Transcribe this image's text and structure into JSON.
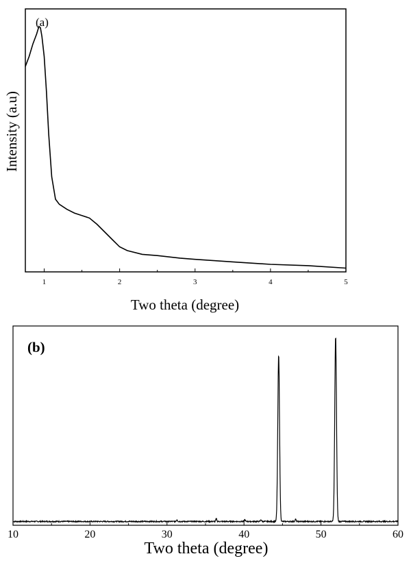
{
  "chart_data": [
    {
      "type": "line",
      "panel_label": "(a)",
      "xlabel": "Two theta (degree)",
      "ylabel": "Intensity (a.u)",
      "xlim": [
        0.75,
        5
      ],
      "ylim": [
        0,
        1.05
      ],
      "xticks": [
        1,
        2,
        3,
        4,
        5
      ],
      "yticks_shown": false,
      "grid": false,
      "series": [
        {
          "x": [
            0.75,
            0.8,
            0.85,
            0.9,
            0.93,
            0.95,
            0.97,
            1.0,
            1.03,
            1.06,
            1.1,
            1.15,
            1.2,
            1.3,
            1.4,
            1.5,
            1.6,
            1.7,
            1.8,
            1.9,
            2.0,
            2.1,
            2.3,
            2.5,
            2.8,
            3.0,
            3.5,
            4.0,
            4.5,
            5.0
          ],
          "y": [
            0.82,
            0.86,
            0.91,
            0.95,
            0.98,
            0.975,
            0.94,
            0.86,
            0.72,
            0.55,
            0.38,
            0.29,
            0.27,
            0.25,
            0.235,
            0.225,
            0.215,
            0.19,
            0.16,
            0.13,
            0.1,
            0.085,
            0.07,
            0.065,
            0.055,
            0.05,
            0.04,
            0.03,
            0.025,
            0.015
          ]
        }
      ]
    },
    {
      "type": "line",
      "panel_label": "(b)",
      "xlabel": "Two theta (degree)",
      "xlim": [
        10,
        60
      ],
      "ylim": [
        0,
        1.05
      ],
      "xticks": [
        10,
        20,
        30,
        40,
        50,
        60
      ],
      "yticks_shown": false,
      "grid": false,
      "baseline": 0.02,
      "peaks": [
        {
          "x": 31.3,
          "height": 0.01
        },
        {
          "x": 36.4,
          "height": 0.015
        },
        {
          "x": 40.1,
          "height": 0.01
        },
        {
          "x": 42.2,
          "height": 0.01
        },
        {
          "x": 44.5,
          "height": 0.88
        },
        {
          "x": 46.7,
          "height": 0.012
        },
        {
          "x": 51.9,
          "height": 0.98
        }
      ]
    }
  ]
}
